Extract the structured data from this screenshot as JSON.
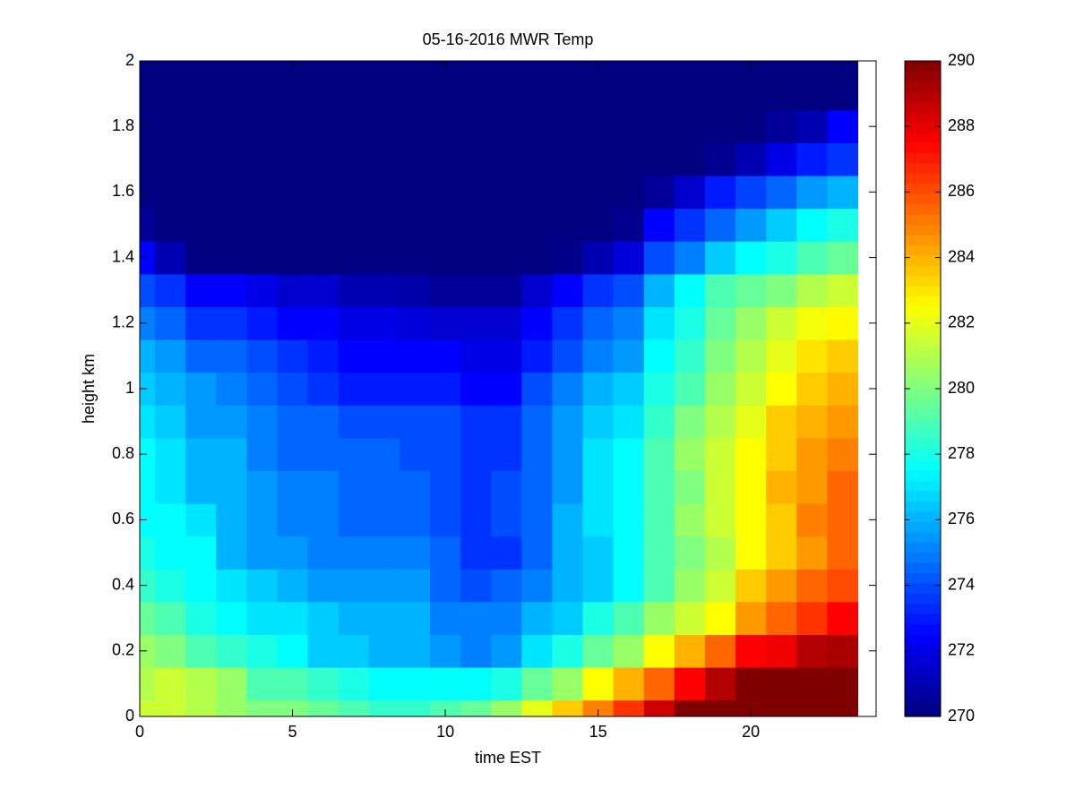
{
  "chart_data": {
    "type": "heatmap",
    "title": "05-16-2016 MWR Temp",
    "x_label": "time EST",
    "y_label": "height km",
    "colormap": "jet",
    "x": [
      0,
      1,
      2,
      3,
      4,
      5,
      6,
      7,
      8,
      9,
      10,
      11,
      12,
      13,
      14,
      15,
      16,
      17,
      18,
      19,
      20,
      21,
      22,
      23
    ],
    "y": [
      0,
      0.1,
      0.2,
      0.3,
      0.4,
      0.5,
      0.6,
      0.7,
      0.8,
      0.9,
      1,
      1.1,
      1.2,
      1.3,
      1.4,
      1.5,
      1.6,
      1.7,
      1.8,
      1.9,
      2
    ],
    "z": [
      [
        281.5,
        281.5,
        281,
        280.5,
        280,
        280,
        279.5,
        279,
        278.5,
        278.5,
        279,
        279.5,
        280.5,
        282,
        283.5,
        285,
        286.5,
        288.5,
        290,
        290.5,
        290.5,
        290.5,
        290.5,
        290.5
      ],
      [
        281,
        281.5,
        281,
        280.5,
        279,
        279,
        278.5,
        278,
        277.5,
        277.5,
        277.5,
        277.5,
        278,
        279.5,
        280.5,
        282.5,
        284,
        285.5,
        287.5,
        289,
        291,
        291,
        291,
        291
      ],
      [
        280.5,
        280,
        279,
        278.5,
        278,
        277.5,
        276.5,
        276.5,
        276,
        276,
        275.5,
        275,
        275.5,
        277,
        278,
        279.5,
        280.5,
        282.5,
        284,
        285.5,
        287.5,
        287.8,
        289,
        289.2
      ],
      [
        279.5,
        279,
        278,
        277.5,
        277,
        277,
        276.5,
        276,
        276,
        276,
        275,
        275,
        275,
        276,
        276.5,
        278,
        279,
        280.5,
        281.5,
        282.5,
        284.5,
        285.5,
        286.5,
        287.5
      ],
      [
        278.5,
        278,
        277.5,
        277,
        276.5,
        276,
        275.5,
        275.5,
        275.5,
        275.5,
        274.5,
        274,
        274.5,
        275,
        276,
        276.5,
        277.5,
        279,
        280.5,
        281.5,
        283.5,
        284.5,
        285.5,
        286
      ],
      [
        278,
        277.5,
        277.5,
        276,
        275.5,
        275.5,
        275,
        275,
        275,
        275,
        274.5,
        273.5,
        273.5,
        274.5,
        276,
        276.5,
        277.5,
        279,
        280,
        281,
        282.5,
        283.5,
        284.5,
        285.5
      ],
      [
        277.5,
        277.5,
        277,
        276,
        275.5,
        275,
        275,
        274.5,
        274.5,
        274.5,
        274,
        273.5,
        274,
        274.5,
        276,
        277,
        277.5,
        279,
        280.5,
        281.5,
        282.5,
        283.5,
        285,
        285.5
      ],
      [
        277.5,
        277,
        276,
        276,
        275.5,
        275,
        275,
        274.5,
        274.5,
        274.5,
        274,
        273.5,
        274,
        274.5,
        275.5,
        277,
        277.5,
        279,
        280,
        281.5,
        282.5,
        284,
        284.5,
        285.5
      ],
      [
        277.5,
        277,
        276,
        276,
        275,
        274.5,
        274.5,
        274.5,
        274.5,
        274,
        274,
        273.5,
        273.5,
        274.5,
        275.5,
        277,
        277.5,
        279,
        280.5,
        281.5,
        282.5,
        283.5,
        284.5,
        285
      ],
      [
        277,
        276.5,
        275.5,
        275.5,
        275,
        274.5,
        274.5,
        274,
        274,
        274,
        274,
        273.5,
        273.5,
        274.5,
        275.5,
        276.5,
        277,
        278.5,
        280,
        281,
        282,
        283.5,
        284,
        284.5
      ],
      [
        276.5,
        276,
        275.5,
        275,
        274.5,
        274,
        273.5,
        273,
        273,
        273,
        273,
        272.5,
        272.5,
        274,
        275,
        276,
        276.5,
        278,
        279,
        280.5,
        281.5,
        282.5,
        283.5,
        284
      ],
      [
        276,
        275.5,
        274.5,
        274.5,
        274,
        273.5,
        273,
        272.5,
        272.5,
        272.5,
        272.5,
        272,
        272,
        273,
        274,
        275,
        275.5,
        277.5,
        278.5,
        280,
        281,
        282,
        283,
        283.5
      ],
      [
        275,
        274.5,
        273.5,
        273.5,
        273,
        272.5,
        272.5,
        272,
        272,
        271.8,
        271.6,
        271.6,
        271.6,
        272.5,
        273.5,
        274.5,
        275,
        277,
        278,
        279.5,
        280.5,
        281.5,
        282.3,
        282.6
      ],
      [
        274,
        273.5,
        272.5,
        272.5,
        272,
        271.5,
        271.5,
        271,
        271,
        270.8,
        270.5,
        270.5,
        270.5,
        271.5,
        272.5,
        273.5,
        274,
        276,
        277.5,
        279,
        279.5,
        280,
        281,
        281.5
      ],
      [
        272.5,
        271,
        269,
        269,
        269,
        269,
        269,
        269,
        269,
        269,
        269,
        269,
        269,
        269,
        270.2,
        271,
        271.8,
        274,
        275,
        276.5,
        277.5,
        278,
        279,
        279.5
      ],
      [
        270.5,
        269,
        269,
        269,
        269,
        269,
        269,
        269,
        269,
        269,
        269,
        269,
        269,
        269,
        269,
        269,
        270.3,
        272.5,
        273.5,
        274.5,
        275.5,
        276.5,
        277.5,
        278
      ],
      [
        269,
        269,
        269,
        269,
        269,
        269,
        269,
        269,
        269,
        269,
        269,
        269,
        269,
        269,
        269,
        269,
        269,
        270.5,
        271.5,
        273,
        273.8,
        274.5,
        275.5,
        276
      ],
      [
        269,
        269,
        269,
        269,
        269,
        269,
        269,
        269,
        269,
        269,
        269,
        269,
        269,
        269,
        269,
        269,
        269,
        269,
        269,
        270.3,
        271,
        272,
        273,
        273.5
      ],
      [
        269,
        269,
        269,
        269,
        269,
        269,
        269,
        269,
        269,
        269,
        269,
        269,
        269,
        269,
        269,
        269,
        269,
        269,
        269,
        269,
        269.5,
        270.5,
        271,
        272.5
      ],
      [
        269,
        269,
        269,
        269,
        269,
        269,
        269,
        269,
        269,
        269,
        269,
        269,
        269,
        269,
        269,
        269,
        269,
        269,
        269,
        269,
        269,
        269,
        269,
        269
      ],
      [
        269,
        269,
        269,
        269,
        269,
        269,
        269,
        269,
        269,
        269,
        269,
        269,
        269,
        269,
        269,
        269,
        269,
        269,
        269,
        269,
        269,
        269,
        269,
        269
      ]
    ],
    "xlim": [
      0,
      24.1
    ],
    "xticks": [
      0,
      5,
      10,
      15,
      20
    ],
    "ylim": [
      0,
      2
    ],
    "yticks": [
      0,
      0.2,
      0.4,
      0.6,
      0.8,
      1,
      1.2,
      1.4,
      1.6,
      1.8,
      2
    ],
    "clim": [
      270,
      290
    ],
    "cticks": [
      270,
      272,
      274,
      276,
      278,
      280,
      282,
      284,
      286,
      288,
      290
    ]
  }
}
